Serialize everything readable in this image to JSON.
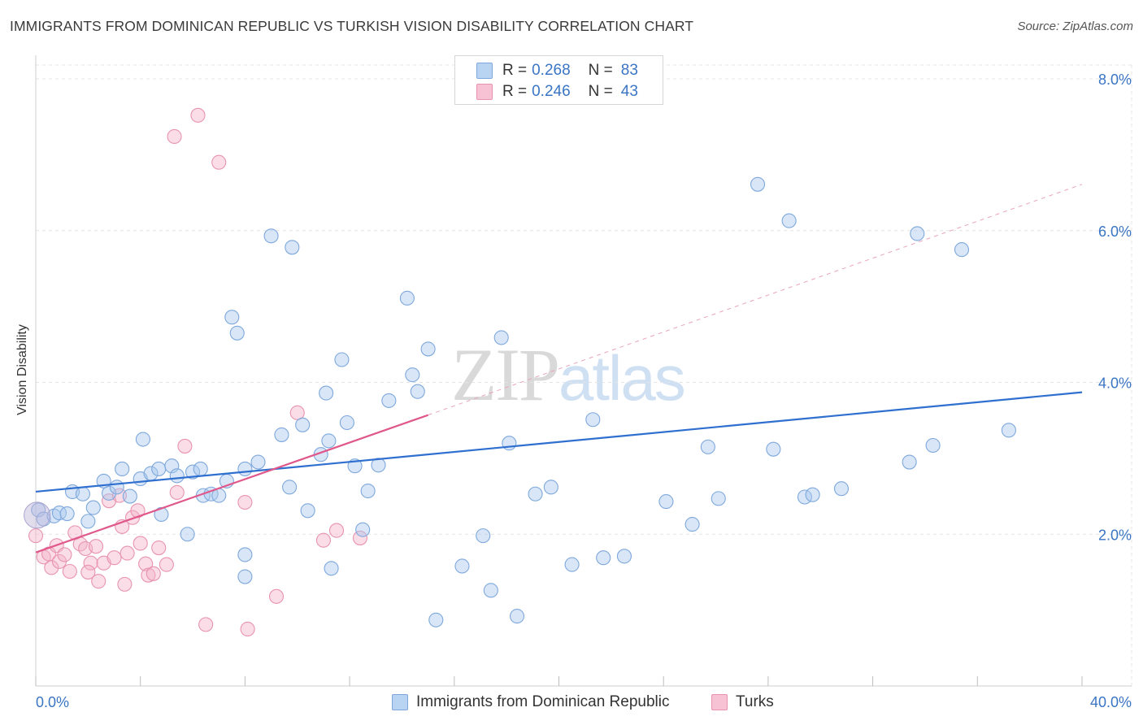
{
  "header": {
    "title": "IMMIGRANTS FROM DOMINICAN REPUBLIC VS TURKISH VISION DISABILITY CORRELATION CHART",
    "source": "Source: ZipAtlas.com"
  },
  "watermark": {
    "zip": "ZIP",
    "atlas": "atlas"
  },
  "legend": {
    "r_label": "R =",
    "n_label": "N =",
    "rows": [
      {
        "r_value": "0.268",
        "n_value": "83",
        "fill": "#b9d3f3",
        "stroke": "#7ea8dc"
      },
      {
        "r_value": "0.246",
        "n_value": "43",
        "fill": "#f7c3d4",
        "stroke": "#e893b0"
      }
    ]
  },
  "bottom_legend": {
    "items": [
      {
        "label": "Immigrants from Dominican Republic",
        "fill": "#b9d3f3",
        "stroke": "#7ea8dc"
      },
      {
        "label": "Turks",
        "fill": "#f7c3d4",
        "stroke": "#e893b0"
      }
    ]
  },
  "colors": {
    "blue_line": "#2f6fcf",
    "pink_line": "#e0578a",
    "blue_fill": "rgba(168,199,238,0.45)",
    "blue_stroke": "#7ea8dc",
    "pink_fill": "rgba(245,180,202,0.45)",
    "pink_stroke": "#e893b0",
    "grid": "#e4e4e4",
    "tick_label": "#3a75c4"
  },
  "chart_data": {
    "type": "scatter",
    "title": "IMMIGRANTS FROM DOMINICAN REPUBLIC VS TURKISH VISION DISABILITY CORRELATION CHART",
    "xlabel": "",
    "ylabel": "Vision Disability",
    "xlim": [
      0,
      40
    ],
    "ylim": [
      0,
      8
    ],
    "x_tick_labels": [
      "0.0%",
      "40.0%"
    ],
    "y_ticks": [
      2,
      4,
      6,
      8
    ],
    "y_tick_labels": [
      "2.0%",
      "4.0%",
      "6.0%",
      "8.0%"
    ],
    "grid": true,
    "series": [
      {
        "name": "Immigrants from Dominican Republic",
        "r": 0.268,
        "n": 83,
        "trend": {
          "x0": 0,
          "y0": 2.56,
          "x1": 40,
          "y1": 3.87
        },
        "points": [
          [
            0.1,
            2.32
          ],
          [
            0.3,
            2.2
          ],
          [
            0.7,
            2.24
          ],
          [
            0.9,
            2.28
          ],
          [
            1.2,
            2.27
          ],
          [
            1.4,
            2.56
          ],
          [
            1.8,
            2.53
          ],
          [
            2.0,
            2.17
          ],
          [
            2.2,
            2.35
          ],
          [
            2.6,
            2.7
          ],
          [
            2.8,
            2.54
          ],
          [
            3.1,
            2.62
          ],
          [
            3.3,
            2.86
          ],
          [
            3.6,
            2.5
          ],
          [
            4.0,
            2.73
          ],
          [
            4.1,
            3.25
          ],
          [
            4.4,
            2.8
          ],
          [
            4.7,
            2.86
          ],
          [
            4.8,
            2.26
          ],
          [
            5.2,
            2.9
          ],
          [
            5.4,
            2.77
          ],
          [
            5.8,
            2.0
          ],
          [
            6.0,
            2.82
          ],
          [
            6.3,
            2.86
          ],
          [
            6.4,
            2.51
          ],
          [
            6.7,
            2.53
          ],
          [
            7.0,
            2.51
          ],
          [
            7.3,
            2.7
          ],
          [
            7.5,
            4.86
          ],
          [
            7.7,
            4.65
          ],
          [
            8.0,
            2.86
          ],
          [
            8.5,
            2.95
          ],
          [
            8.0,
            1.73
          ],
          [
            8.0,
            1.44
          ],
          [
            9.0,
            5.93
          ],
          [
            9.4,
            3.31
          ],
          [
            9.8,
            5.78
          ],
          [
            9.7,
            2.62
          ],
          [
            10.2,
            3.44
          ],
          [
            10.4,
            2.31
          ],
          [
            10.9,
            3.05
          ],
          [
            11.1,
            3.86
          ],
          [
            11.2,
            3.23
          ],
          [
            11.3,
            1.55
          ],
          [
            11.7,
            4.3
          ],
          [
            11.9,
            3.47
          ],
          [
            12.2,
            2.9
          ],
          [
            12.5,
            2.06
          ],
          [
            12.7,
            2.57
          ],
          [
            13.1,
            2.91
          ],
          [
            13.5,
            3.76
          ],
          [
            14.2,
            5.11
          ],
          [
            14.4,
            4.1
          ],
          [
            14.6,
            3.88
          ],
          [
            15.0,
            4.44
          ],
          [
            15.3,
            0.87
          ],
          [
            16.3,
            1.58
          ],
          [
            17.1,
            1.98
          ],
          [
            17.4,
            1.26
          ],
          [
            17.8,
            4.59
          ],
          [
            18.1,
            3.2
          ],
          [
            18.4,
            0.92
          ],
          [
            19.1,
            2.53
          ],
          [
            19.7,
            2.62
          ],
          [
            20.5,
            1.6
          ],
          [
            21.3,
            3.51
          ],
          [
            21.7,
            1.69
          ],
          [
            22.5,
            1.71
          ],
          [
            24.1,
            2.43
          ],
          [
            25.1,
            2.13
          ],
          [
            25.7,
            3.15
          ],
          [
            26.1,
            2.47
          ],
          [
            27.6,
            6.61
          ],
          [
            28.2,
            3.12
          ],
          [
            28.8,
            6.13
          ],
          [
            29.4,
            2.49
          ],
          [
            29.7,
            2.52
          ],
          [
            30.8,
            2.6
          ],
          [
            33.4,
            2.95
          ],
          [
            33.7,
            5.96
          ],
          [
            34.3,
            3.17
          ],
          [
            35.4,
            5.75
          ],
          [
            37.2,
            3.37
          ]
        ]
      },
      {
        "name": "Turks",
        "r": 0.246,
        "n": 43,
        "trend": {
          "x0": 0,
          "y0": 1.76,
          "x1": 15,
          "y1": 3.57
        },
        "trend_extension": {
          "x0": 15,
          "y0": 3.57,
          "x1": 40,
          "y1": 6.61
        },
        "points": [
          [
            0.0,
            1.98
          ],
          [
            0.3,
            1.7
          ],
          [
            0.5,
            1.74
          ],
          [
            0.6,
            1.56
          ],
          [
            0.8,
            1.85
          ],
          [
            0.9,
            1.64
          ],
          [
            1.1,
            1.73
          ],
          [
            1.3,
            1.51
          ],
          [
            1.5,
            2.02
          ],
          [
            1.7,
            1.87
          ],
          [
            1.9,
            1.81
          ],
          [
            2.1,
            1.62
          ],
          [
            2.3,
            1.84
          ],
          [
            2.4,
            1.38
          ],
          [
            2.6,
            1.62
          ],
          [
            2.8,
            2.44
          ],
          [
            3.0,
            1.69
          ],
          [
            3.2,
            2.51
          ],
          [
            3.3,
            2.1
          ],
          [
            3.4,
            1.34
          ],
          [
            3.5,
            1.75
          ],
          [
            3.7,
            2.22
          ],
          [
            3.9,
            2.31
          ],
          [
            4.0,
            1.88
          ],
          [
            4.2,
            1.61
          ],
          [
            4.3,
            1.46
          ],
          [
            4.5,
            1.48
          ],
          [
            4.7,
            1.82
          ],
          [
            5.3,
            7.24
          ],
          [
            5.4,
            2.55
          ],
          [
            5.7,
            3.16
          ],
          [
            6.2,
            7.52
          ],
          [
            6.5,
            0.81
          ],
          [
            7.0,
            6.9
          ],
          [
            8.0,
            2.42
          ],
          [
            8.1,
            0.75
          ],
          [
            9.2,
            1.18
          ],
          [
            11.0,
            1.92
          ],
          [
            11.5,
            2.05
          ],
          [
            12.4,
            1.95
          ],
          [
            10.0,
            3.6
          ],
          [
            2.0,
            1.5
          ],
          [
            5.0,
            1.6
          ]
        ]
      }
    ]
  }
}
